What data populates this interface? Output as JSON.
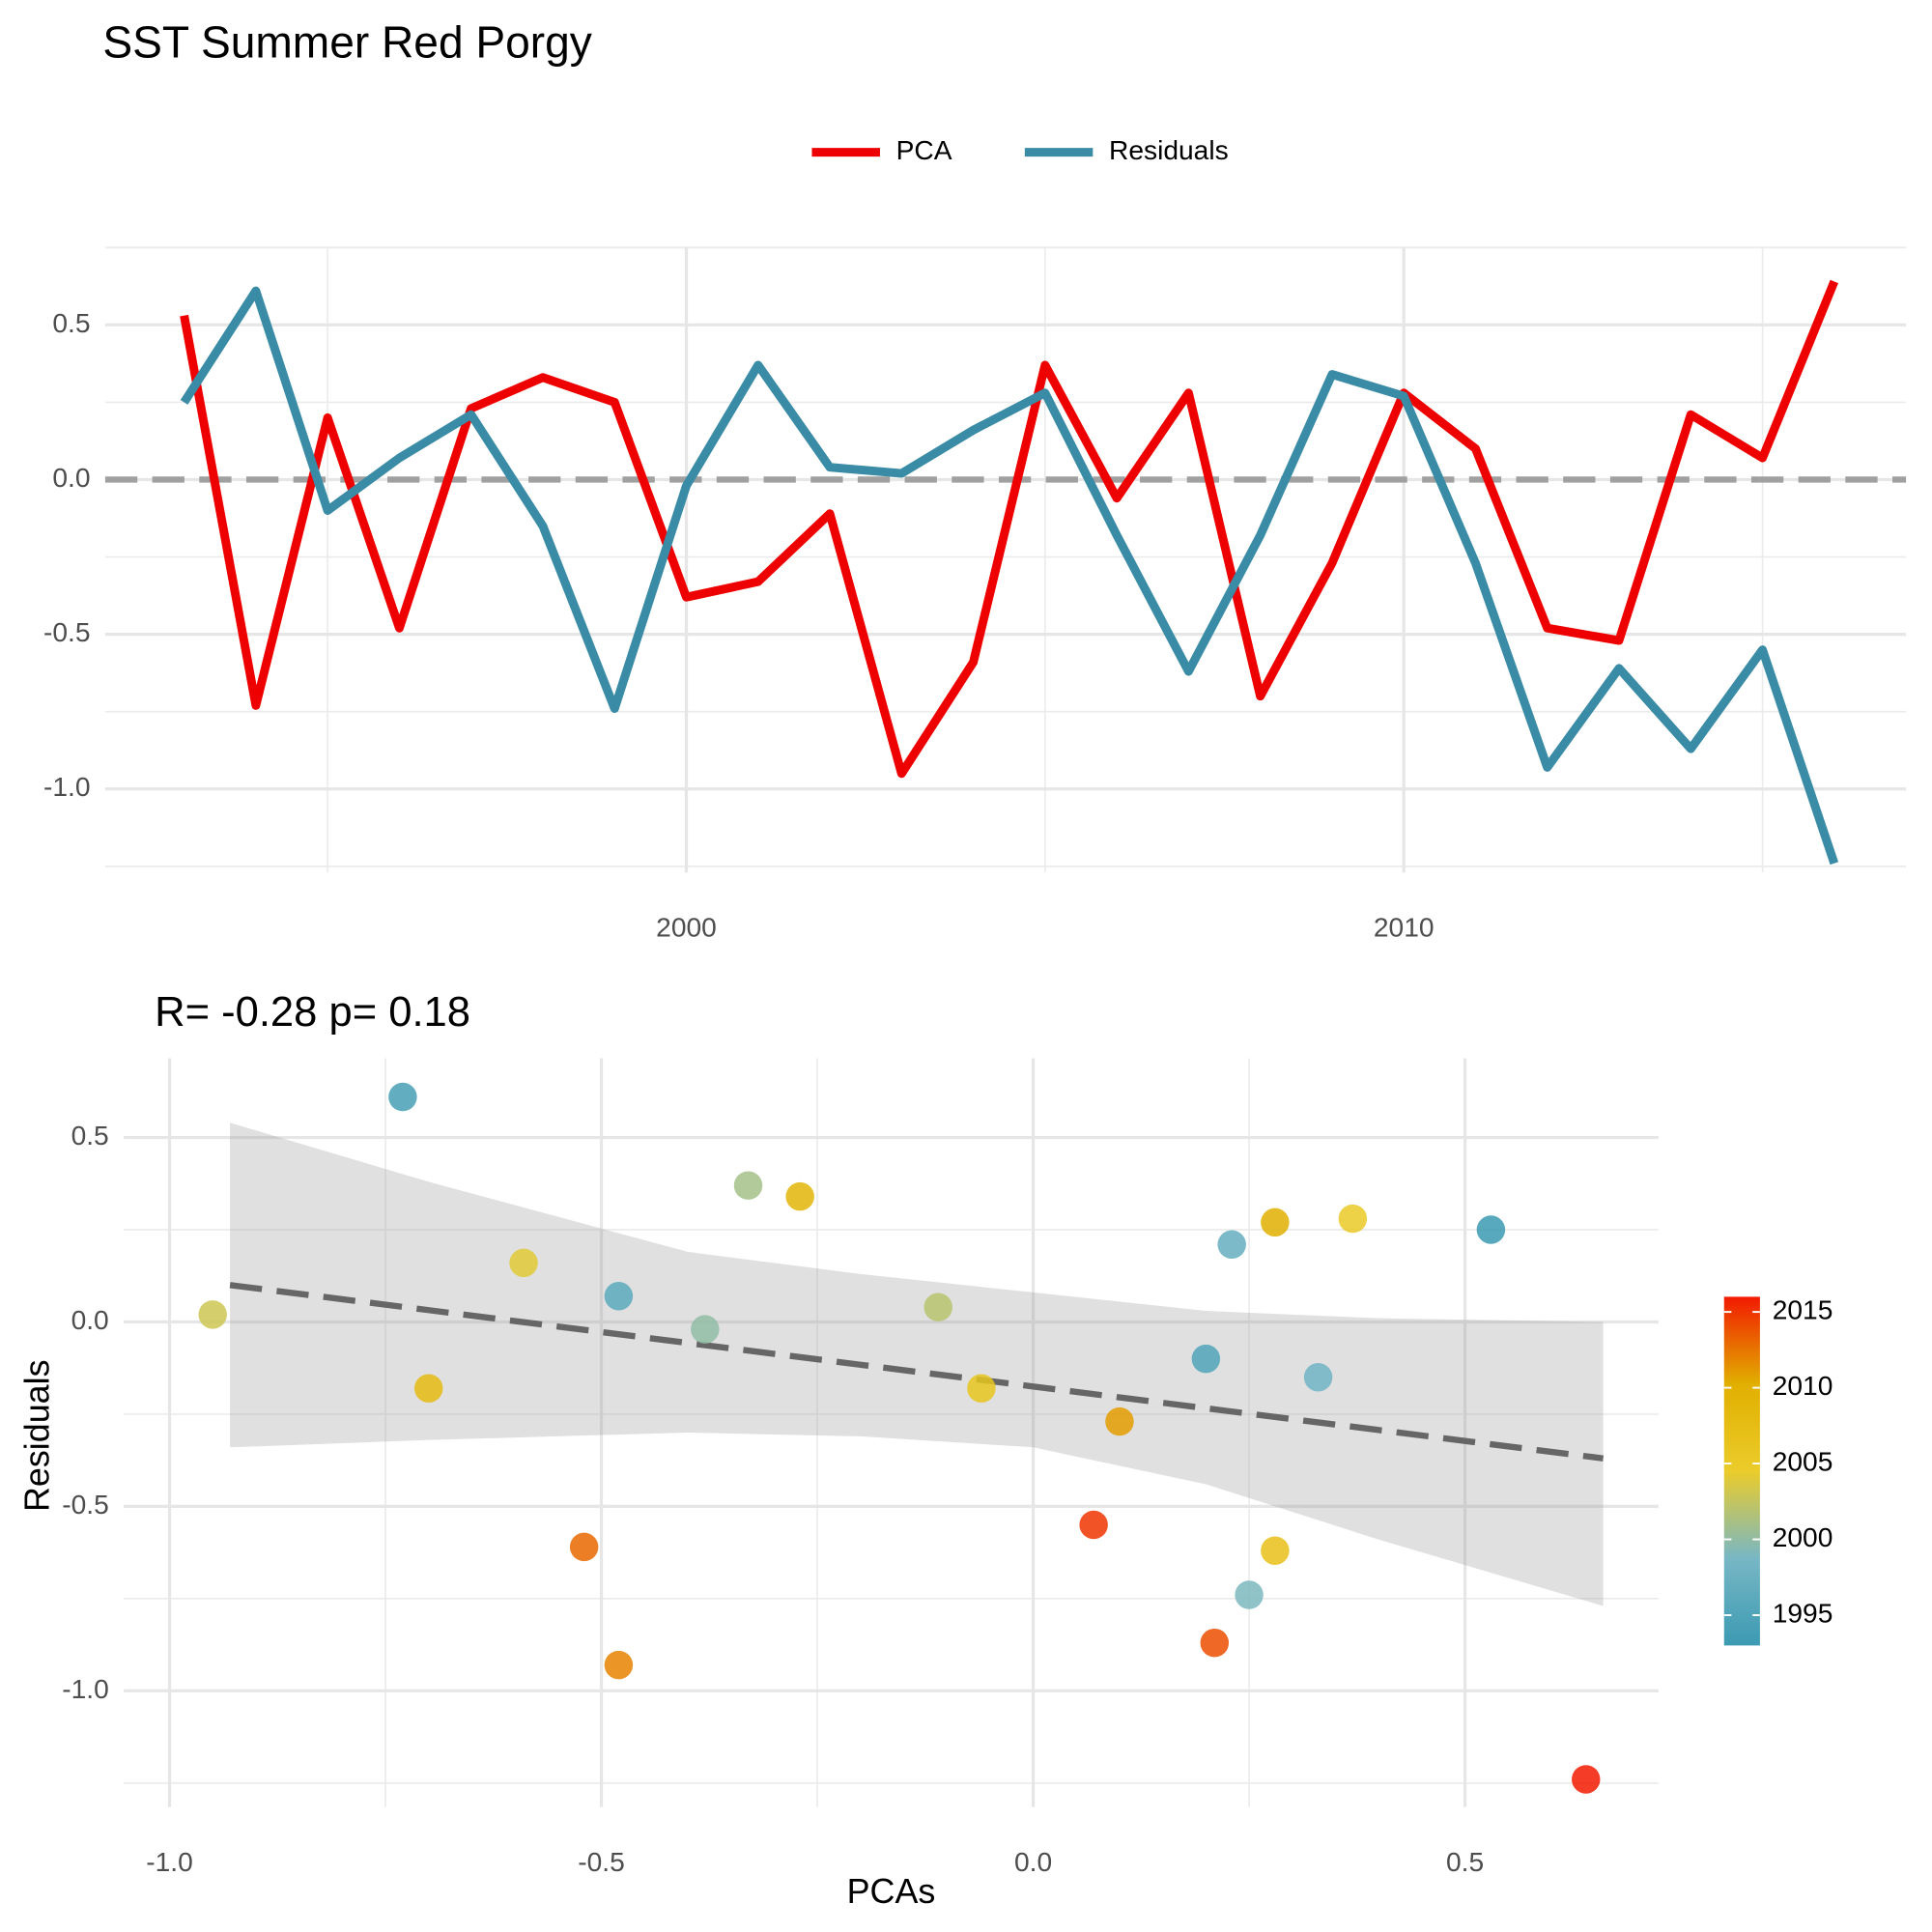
{
  "chart_data": [
    {
      "type": "line",
      "title": "SST Summer  Red Porgy",
      "x": [
        1993,
        1994,
        1995,
        1996,
        1997,
        1998,
        1999,
        2000,
        2001,
        2002,
        2003,
        2004,
        2005,
        2006,
        2007,
        2008,
        2009,
        2010,
        2011,
        2012,
        2013,
        2014,
        2015,
        2016
      ],
      "series": [
        {
          "name": "PCA",
          "color": "#ee0000",
          "values": [
            0.53,
            -0.73,
            0.2,
            -0.48,
            0.23,
            0.33,
            0.25,
            -0.38,
            -0.33,
            -0.11,
            -0.95,
            -0.59,
            0.37,
            -0.06,
            0.28,
            -0.7,
            -0.27,
            0.28,
            0.1,
            -0.48,
            -0.52,
            0.21,
            0.07,
            0.64
          ]
        },
        {
          "name": "Residuals",
          "color": "#3a8ba5",
          "values": [
            0.25,
            0.61,
            -0.1,
            0.07,
            0.21,
            -0.15,
            -0.74,
            -0.02,
            0.37,
            0.04,
            0.02,
            0.16,
            0.28,
            -0.18,
            -0.62,
            -0.18,
            0.34,
            0.27,
            -0.27,
            -0.93,
            -0.61,
            -0.87,
            -0.55,
            -1.24
          ]
        }
      ],
      "xlim": [
        1991.9,
        2017
      ],
      "xticks": [
        2000,
        2010
      ],
      "ylim": [
        -1.27,
        0.75
      ],
      "yticks": [
        0.5,
        {
          "value": 0,
          "label": "0.0"
        },
        -0.5,
        {
          "value": -1,
          "label": "-1.0"
        }
      ],
      "hline": 0,
      "grid": true,
      "legend": "top"
    },
    {
      "type": "scatter",
      "title": "R= -0.28  p= 0.18",
      "xlabel": "PCAs",
      "ylabel": "Residuals",
      "xlim": [
        -1.053,
        0.724
      ],
      "xticks": [
        {
          "value": -1,
          "label": "-1.0"
        },
        -0.5,
        {
          "value": 0,
          "label": "0.0"
        },
        0.5
      ],
      "ylim": [
        -1.315,
        0.715
      ],
      "yticks": [
        0.5,
        {
          "value": 0,
          "label": "0.0"
        },
        -0.5,
        {
          "value": -1,
          "label": "-1.0"
        }
      ],
      "fit": {
        "x": [
          -0.93,
          -0.7,
          -0.4,
          -0.2,
          0,
          0.2,
          0.4,
          0.66
        ],
        "y": [
          0.1,
          0.032,
          -0.057,
          -0.116,
          -0.175,
          -0.234,
          -0.293,
          -0.37
        ],
        "lower": [
          -0.34,
          -0.32,
          -0.3,
          -0.31,
          -0.34,
          -0.44,
          -0.59,
          -0.77
        ],
        "upper": [
          0.54,
          0.38,
          0.19,
          0.13,
          0.08,
          0.03,
          0.01,
          0.0
        ]
      },
      "colors": [
        "#3b9ab2",
        "#78b7c5",
        "#ebcc2a",
        "#e1af00",
        "#f21a00"
      ],
      "colorbar_lim": [
        1993,
        2016
      ],
      "colorbar_ticks": [
        2015,
        2010,
        2005,
        2000,
        1995
      ],
      "grid": true
    }
  ]
}
